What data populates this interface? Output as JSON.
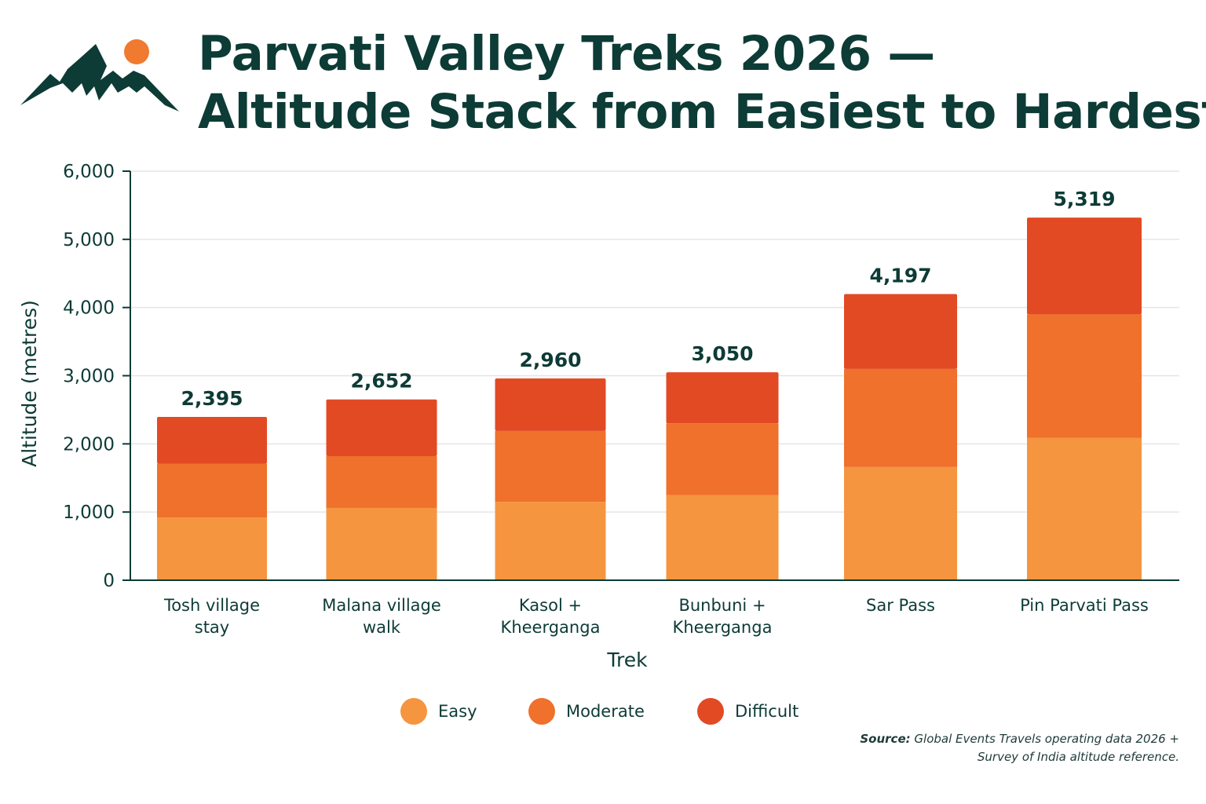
{
  "title_line1": "Parvati Valley Treks 2026 —",
  "title_line2": "Altitude Stack from Easiest to Hardest",
  "colors": {
    "easy": "#f5953f",
    "moderate": "#ef712b",
    "difficult": "#e24a24",
    "ink": "#0d3b36",
    "sun": "#f07a2f"
  },
  "chart_data": {
    "type": "bar",
    "stacked": true,
    "xlabel": "Trek",
    "ylabel": "Altitude (metres)",
    "ylim": [
      0,
      6000
    ],
    "yticks": [
      0,
      1000,
      2000,
      3000,
      4000,
      5000,
      6000
    ],
    "ytick_labels": [
      "0",
      "1,000",
      "2,000",
      "3,000",
      "4,000",
      "5,000",
      "6,000"
    ],
    "grid": true,
    "legend_position": "bottom",
    "categories": [
      [
        "Tosh village",
        "stay"
      ],
      [
        "Malana village",
        "walk"
      ],
      [
        "Kasol +",
        "Kheerganga"
      ],
      [
        "Bunbuni +",
        "Kheerganga"
      ],
      [
        "Sar Pass"
      ],
      [
        "Pin Parvati Pass"
      ]
    ],
    "series": [
      {
        "name": "Easy",
        "values": [
          920,
          1060,
          1150,
          1250,
          1660,
          2090
        ]
      },
      {
        "name": "Moderate",
        "values": [
          790,
          760,
          1040,
          1050,
          1440,
          1810
        ]
      },
      {
        "name": "Difficult",
        "values": [
          685,
          832,
          770,
          750,
          1097,
          1419
        ]
      }
    ],
    "totals": [
      2395,
      2652,
      2960,
      3050,
      4197,
      5319
    ],
    "total_labels": [
      "2,395",
      "2,652",
      "2,960",
      "3,050",
      "4,197",
      "5,319"
    ]
  },
  "legend": {
    "easy": "Easy",
    "moderate": "Moderate",
    "difficult": "Difficult"
  },
  "source": {
    "label": "Source:",
    "line1": "Global Events Travels operating data 2026 +",
    "line2": "Survey of India altitude reference."
  }
}
